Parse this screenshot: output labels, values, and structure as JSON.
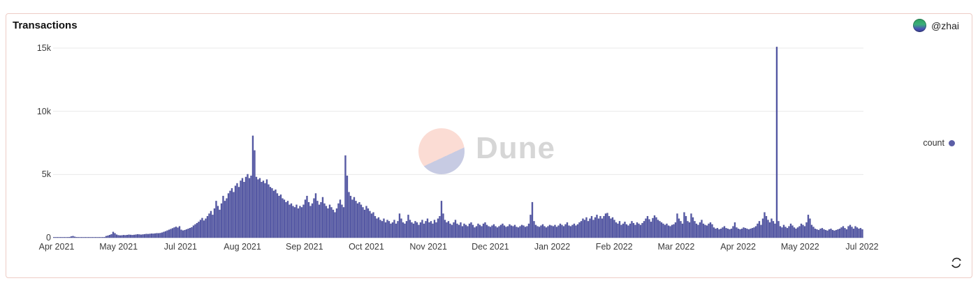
{
  "header": {
    "title": "Transactions",
    "user_handle": "@zhai"
  },
  "legend": {
    "label": "count",
    "color": "#5b5ea6"
  },
  "watermark": {
    "text": "Dune",
    "circle_top_color": "#fbdcd4",
    "circle_bottom_color": "#c7cbe3"
  },
  "card_border_color": "#eeccc5",
  "icons": {
    "refresh": "circular-arrows",
    "legend_marker": "filled-dot"
  },
  "chart_data": {
    "type": "bar",
    "title": "Transactions",
    "series_name": "count",
    "color": "#575aa8",
    "bar_stroke_color": "#43478e",
    "grid_color": "#e9e9e9",
    "grid": true,
    "legend_position": "right",
    "x_start": "Apr 2021",
    "x_end": "Jul 2022",
    "granularity": "daily",
    "x_tick_labels": [
      "Apr 2021",
      "May 2021",
      "Jul 2021",
      "Aug 2021",
      "Sep 2021",
      "Oct 2021",
      "Nov 2021",
      "Dec 2021",
      "Jan 2022",
      "Feb 2022",
      "Mar 2022",
      "Apr 2022",
      "May 2022",
      "Jul 2022"
    ],
    "y_ticks": [
      {
        "label": "0",
        "value": 0
      },
      {
        "label": "5k",
        "value": 5000
      },
      {
        "label": "10k",
        "value": 10000
      },
      {
        "label": "15k",
        "value": 15000
      }
    ],
    "ylim": [
      0,
      15088
    ],
    "values": [
      2,
      4,
      6,
      8,
      10,
      12,
      15,
      20,
      30,
      45,
      90,
      120,
      70,
      40,
      30,
      25,
      22,
      20,
      24,
      28,
      25,
      20,
      18,
      22,
      26,
      30,
      28,
      25,
      30,
      38,
      120,
      160,
      210,
      260,
      450,
      350,
      240,
      190,
      170,
      180,
      200,
      190,
      210,
      230,
      220,
      200,
      220,
      240,
      260,
      250,
      230,
      250,
      270,
      290,
      280,
      300,
      320,
      310,
      330,
      350,
      340,
      360,
      400,
      450,
      500,
      560,
      620,
      680,
      740,
      800,
      860,
      790,
      900,
      620,
      560,
      600,
      650,
      700,
      760,
      820,
      950,
      1050,
      1150,
      1250,
      1400,
      1550,
      1350,
      1500,
      1700,
      1900,
      2100,
      1800,
      2300,
      2900,
      2500,
      2200,
      2700,
      3300,
      2900,
      3100,
      3500,
      3700,
      3900,
      3600,
      4100,
      4300,
      4000,
      4500,
      4700,
      4400,
      4800,
      5020,
      4700,
      4900,
      8059,
      6900,
      4800,
      4600,
      4700,
      4400,
      4500,
      4300,
      4600,
      4200,
      4000,
      3900,
      3700,
      3800,
      3500,
      3300,
      3400,
      3100,
      3000,
      2800,
      2900,
      2600,
      2700,
      2500,
      2400,
      2600,
      2300,
      2500,
      2400,
      2600,
      3000,
      3300,
      2800,
      2500,
      2700,
      3100,
      3500,
      2900,
      2600,
      2800,
      3200,
      2700,
      2500,
      2300,
      2600,
      2400,
      2200,
      2000,
      2300,
      2700,
      3000,
      2600,
      2400,
      6500,
      4900,
      3600,
      3300,
      3000,
      3200,
      2900,
      2700,
      2800,
      2600,
      2400,
      2200,
      2500,
      2300,
      2100,
      1900,
      2000,
      1700,
      1500,
      1600,
      1400,
      1300,
      1500,
      1200,
      1400,
      1300,
      1100,
      1200,
      1400,
      1100,
      1300,
      1900,
      1500,
      1200,
      1100,
      1300,
      1800,
      1400,
      1200,
      1100,
      1300,
      1200,
      1000,
      1200,
      1400,
      1100,
      1300,
      1500,
      1200,
      1300,
      1100,
      1400,
      1200,
      1500,
      1700,
      2900,
      1900,
      1400,
      1200,
      1300,
      1100,
      1000,
      1200,
      1400,
      1100,
      1000,
      1200,
      900,
      1100,
      1000,
      900,
      1100,
      1200,
      1000,
      800,
      900,
      1100,
      1000,
      900,
      1100,
      1200,
      1000,
      900,
      850,
      950,
      1050,
      900,
      800,
      900,
      1000,
      1100,
      950,
      850,
      900,
      1050,
      950,
      900,
      1000,
      850,
      800,
      900,
      1000,
      950,
      850,
      900,
      1100,
      1800,
      2806,
      1300,
      1000,
      900,
      850,
      950,
      1050,
      900,
      800,
      900,
      1000,
      950,
      900,
      1000,
      850,
      950,
      1100,
      1000,
      900,
      1050,
      1200,
      950,
      900,
      1000,
      1100,
      950,
      1050,
      1200,
      1300,
      1500,
      1400,
      1600,
      1300,
      1500,
      1700,
      1400,
      1600,
      1800,
      1500,
      1700,
      1500,
      1700,
      1900,
      1950,
      1700,
      1500,
      1600,
      1400,
      1200,
      1100,
      1300,
      1000,
      1100,
      1250,
      1050,
      950,
      1100,
      1300,
      1150,
      1000,
      1200,
      1100,
      1000,
      1150,
      1300,
      1500,
      1700,
      1450,
      1250,
      1543,
      1750,
      1600,
      1400,
      1300,
      1200,
      1100,
      1000,
      1100,
      950,
      900,
      1000,
      1050,
      1200,
      1900,
      1500,
      1300,
      1100,
      2000,
      1700,
      1300,
      1200,
      1900,
      1600,
      1300,
      1100,
      1000,
      1200,
      1400,
      1100,
      1000,
      950,
      1100,
      1200,
      1050,
      800,
      700,
      750,
      650,
      700,
      800,
      900,
      750,
      700,
      650,
      700,
      900,
      1200,
      800,
      700,
      650,
      700,
      800,
      750,
      700,
      650,
      700,
      750,
      800,
      900,
      1100,
      1300,
      1000,
      1500,
      2000,
      1700,
      1400,
      1200,
      1500,
      1300,
      1100,
      15088,
      1300,
      900,
      800,
      1000,
      850,
      750,
      900,
      1100,
      950,
      800,
      700,
      800,
      900,
      1100,
      1000,
      900,
      1200,
      1800,
      1500,
      1000,
      850,
      700,
      650,
      600,
      700,
      750,
      650,
      600,
      550,
      650,
      700,
      600,
      550,
      600,
      650,
      700,
      800,
      900,
      750,
      650,
      900,
      1000,
      850,
      700,
      900,
      800,
      700,
      750,
      650
    ]
  }
}
